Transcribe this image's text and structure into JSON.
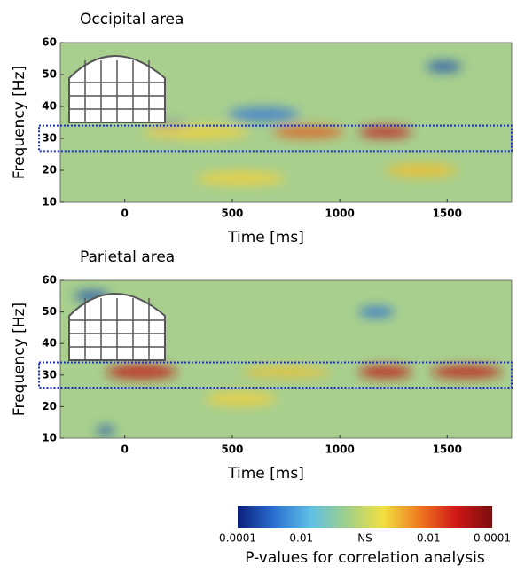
{
  "chart_data": [
    {
      "type": "heatmap",
      "title": "Occipital area",
      "xlabel": "Time [ms]",
      "ylabel": "Frequency [Hz]",
      "xlim": [
        -300,
        1800
      ],
      "ylim": [
        10,
        60
      ],
      "xticks": [
        0,
        500,
        1000,
        1500
      ],
      "yticks": [
        10,
        20,
        30,
        40,
        50,
        60
      ],
      "highlight_ylim": [
        26,
        34
      ]
    },
    {
      "type": "heatmap",
      "title": "Parietal area",
      "xlabel": "Time [ms]",
      "ylabel": "Frequency [Hz]",
      "xlim": [
        -300,
        1800
      ],
      "ylim": [
        10,
        60
      ],
      "xticks": [
        0,
        500,
        1000,
        1500
      ],
      "yticks": [
        10,
        20,
        30,
        40,
        50,
        60
      ],
      "highlight_ylim": [
        26,
        34
      ]
    }
  ],
  "colorbar": {
    "title": "P-values for correlation analysis",
    "labels": [
      "0.0001",
      "0.01",
      "NS",
      "0.01",
      "0.0001"
    ],
    "colors": [
      "#0a1f7a",
      "#2a6fd0",
      "#5fc0e6",
      "#9fd08a",
      "#f0e040",
      "#f07a20",
      "#d01818",
      "#7a0d0d"
    ]
  }
}
